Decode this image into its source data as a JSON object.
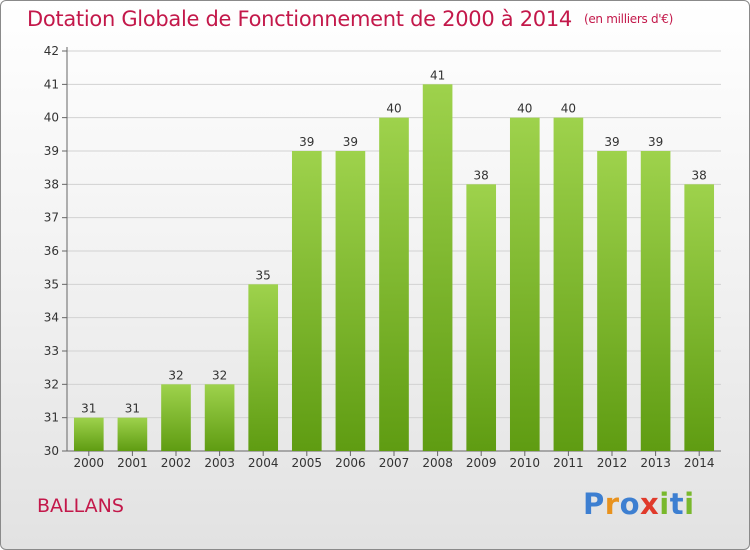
{
  "header": {
    "title": "Dotation Globale de Fonctionnement de 2000 à 2014",
    "subtitle": "(en milliers d'€)"
  },
  "footer": {
    "commune": "BALLANS",
    "brand": [
      "P",
      "r",
      "o",
      "x",
      "i",
      "t",
      "i"
    ]
  },
  "colors": {
    "title": "#c3184a",
    "bar_light": "#9ed24c",
    "bar_dark": "#5f9c12",
    "brand": [
      "#3d7fd1",
      "#e8921e",
      "#3d7fd1",
      "#e03a2b",
      "#79b82c",
      "#3d7fd1",
      "#79b82c"
    ]
  },
  "chart_data": {
    "type": "bar",
    "title": "Dotation Globale de Fonctionnement de 2000 à 2014",
    "subtitle": "(en milliers d'€)",
    "categories": [
      "2000",
      "2001",
      "2002",
      "2003",
      "2004",
      "2005",
      "2006",
      "2007",
      "2008",
      "2009",
      "2010",
      "2011",
      "2012",
      "2013",
      "2014"
    ],
    "values": [
      31,
      31,
      32,
      32,
      35,
      39,
      39,
      40,
      41,
      38,
      40,
      40,
      39,
      39,
      38
    ],
    "ylim": [
      30,
      42
    ],
    "yticks": [
      30,
      31,
      32,
      33,
      34,
      35,
      36,
      37,
      38,
      39,
      40,
      41,
      42
    ],
    "grid": true,
    "data_labels": true
  }
}
